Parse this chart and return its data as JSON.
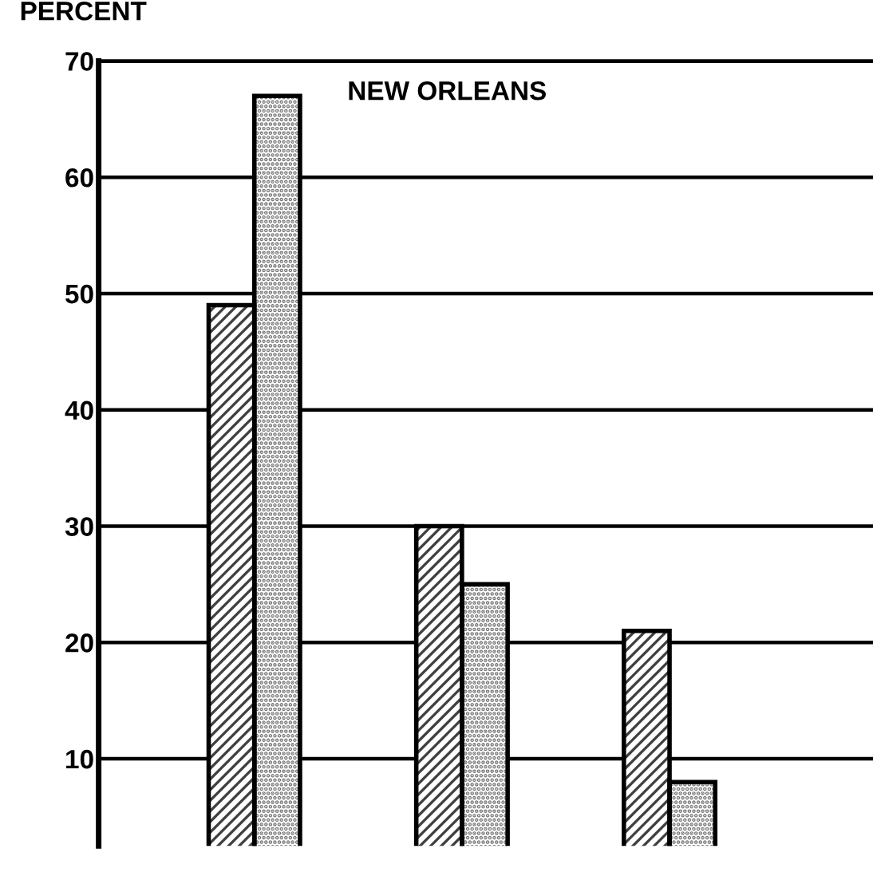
{
  "chart_data": {
    "type": "bar",
    "title": "NEW ORLEANS",
    "ylabel": "PERCENT",
    "categories": [
      null,
      null,
      null
    ],
    "series": [
      {
        "color": "#404040",
        "values": [
          49,
          30,
          21
        ]
      },
      {
        "color": "#707070",
        "values": [
          67,
          25,
          8
        ]
      }
    ],
    "ylim": [
      2.5,
      70
    ],
    "yticks": [
      10,
      20,
      30,
      40,
      50,
      60,
      70
    ],
    "grid": "y"
  }
}
